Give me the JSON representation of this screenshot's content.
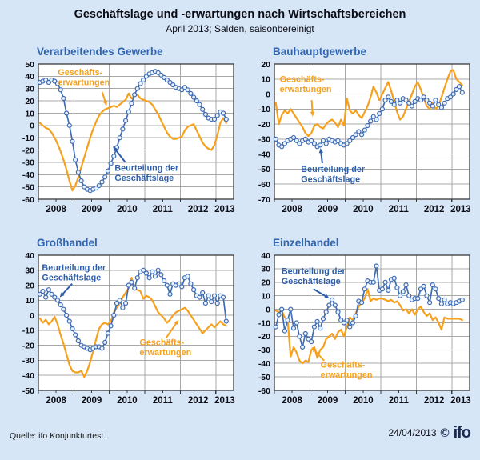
{
  "header": {
    "title": "Geschäftslage und -erwartungen nach Wirtschaftsbereichen",
    "subtitle": "April 2013; Salden, saisonbereinigt"
  },
  "footer": {
    "source": "Quelle: ifo Konjunkturtest.",
    "date": "24/04/2013",
    "copyright": "©",
    "logo": "ifo"
  },
  "colors": {
    "background": "#D7E6F6",
    "plot_bg": "#FFFFFF",
    "grid": "#A8A8A8",
    "frame": "#3A3A3A",
    "orange": "#F6A11D",
    "blue": "#3F6CB4",
    "marker_fill": "#EAF1FB",
    "chart_title": "#3265AF",
    "annotation_blue": "#2E5EA8",
    "logo_navy": "#1B2A52"
  },
  "chart_data": [
    {
      "type": "line",
      "title": "Verarbeitendes Gewerbe",
      "ylim": [
        -60,
        50
      ],
      "ytick_step": 10,
      "x_domain": [
        2008,
        2013.5
      ],
      "x_years": [
        2008,
        2009,
        2010,
        2011,
        2012,
        2013
      ],
      "x_unit": "month (Jan 2008 – Apr 2013)",
      "series": [
        {
          "name": "Geschäftserwartungen",
          "color_key": "orange",
          "values": [
            2,
            0,
            -2,
            -3,
            -6,
            -10,
            -15,
            -21,
            -28,
            -36,
            -45,
            -53,
            -49,
            -42,
            -34,
            -26,
            -18,
            -10,
            -3,
            3,
            8,
            11,
            13,
            14,
            15,
            16,
            15,
            17,
            19,
            21,
            26,
            22,
            24,
            25,
            22,
            21,
            20,
            19,
            17,
            13,
            9,
            4,
            -1,
            -6,
            -9,
            -11,
            -11,
            -10,
            -9,
            -4,
            -1,
            0,
            1,
            -4,
            -9,
            -14,
            -17,
            -19,
            -20,
            -16,
            -8,
            2,
            6,
            2
          ]
        },
        {
          "name": "Beurteilung der Geschäftslage",
          "color_key": "blue",
          "marker": "circle",
          "values": [
            35,
            36,
            37,
            35,
            37,
            36,
            34,
            29,
            22,
            10,
            0,
            -13,
            -28,
            -38,
            -45,
            -50,
            -52,
            -53,
            -52,
            -51,
            -49,
            -46,
            -42,
            -37,
            -31,
            -25,
            -18,
            -10,
            -3,
            4,
            11,
            18,
            25,
            30,
            34,
            37,
            40,
            42,
            43,
            44,
            43,
            41,
            39,
            37,
            35,
            33,
            31,
            30,
            29,
            31,
            29,
            26,
            23,
            20,
            17,
            13,
            9,
            6,
            5,
            5,
            8,
            11,
            10,
            5
          ]
        }
      ],
      "annotations": [
        {
          "lines": [
            "Geschäfts-",
            "erwartungen"
          ],
          "color_key": "orange",
          "x": 2008.55,
          "y": 41,
          "arrow": [
            2009.8,
            27,
            2009.92,
            16
          ]
        },
        {
          "lines": [
            "Beurteilung der",
            "Geschäftslage"
          ],
          "color_key": "blue",
          "x": 2010.15,
          "y": -37,
          "arrow": [
            2010.45,
            -30,
            2010.1,
            -17
          ]
        }
      ]
    },
    {
      "type": "line",
      "title": "Bauhauptgewerbe",
      "ylim": [
        -70,
        20
      ],
      "ytick_step": 10,
      "x_domain": [
        2008,
        2013.5
      ],
      "x_years": [
        2008,
        2009,
        2010,
        2011,
        2012,
        2013
      ],
      "x_unit": "month (Jan 2008 – Apr 2013)",
      "series": [
        {
          "name": "Geschäftserwartungen",
          "color_key": "orange",
          "values": [
            -6,
            -20,
            -14,
            -11,
            -13,
            -10,
            -13,
            -16,
            -19,
            -22,
            -26,
            -28,
            -26,
            -21,
            -20,
            -22,
            -23,
            -20,
            -18,
            -17,
            -19,
            -22,
            -17,
            -21,
            -3,
            -11,
            -13,
            -11,
            -14,
            -16,
            -12,
            -8,
            -2,
            5,
            1,
            -4,
            0,
            4,
            8,
            2,
            -5,
            -12,
            -17,
            -15,
            -10,
            -5,
            0,
            5,
            8,
            3,
            -3,
            -8,
            -10,
            -6,
            -10,
            -8,
            -2,
            4,
            10,
            15,
            16,
            10,
            8,
            6
          ]
        },
        {
          "name": "Beurteilung der Geschäftslage",
          "color_key": "blue",
          "marker": "circle",
          "values": [
            -30,
            -34,
            -35,
            -33,
            -31,
            -30,
            -29,
            -31,
            -33,
            -31,
            -30,
            -32,
            -31,
            -33,
            -35,
            -34,
            -31,
            -33,
            -30,
            -31,
            -32,
            -31,
            -33,
            -34,
            -33,
            -31,
            -29,
            -27,
            -25,
            -27,
            -24,
            -21,
            -18,
            -15,
            -17,
            -13,
            -10,
            -4,
            -2,
            -5,
            -7,
            -4,
            -6,
            -3,
            -4,
            -6,
            -8,
            -5,
            -3,
            -4,
            -2,
            -4,
            -6,
            -8,
            -4,
            -7,
            -9,
            -6,
            -3,
            -2,
            0,
            3,
            5,
            1
          ]
        }
      ],
      "annotations": [
        {
          "lines": [
            "Geschäfts-",
            "erwartungen"
          ],
          "color_key": "orange",
          "x": 2008.15,
          "y": 8,
          "arrow": [
            2009.05,
            -4,
            2009.08,
            -15
          ]
        },
        {
          "lines": [
            "Beurteilung der",
            "Geschäftslage"
          ],
          "color_key": "blue",
          "x": 2008.75,
          "y": -52,
          "arrow": [
            2009.35,
            -46,
            2009.3,
            -36
          ]
        }
      ]
    },
    {
      "type": "line",
      "title": "Großhandel",
      "ylim": [
        -50,
        40
      ],
      "ytick_step": 10,
      "x_domain": [
        2008,
        2013.5
      ],
      "x_years": [
        2008,
        2009,
        2010,
        2011,
        2012,
        2013
      ],
      "x_unit": "month (Jan 2008 – Apr 2013)",
      "series": [
        {
          "name": "Geschäftserwartungen",
          "color_key": "orange",
          "values": [
            -2,
            -5,
            -3,
            -6,
            -4,
            -1,
            -6,
            -13,
            -19,
            -26,
            -33,
            -37,
            -38,
            -38,
            -37,
            -41,
            -37,
            -31,
            -24,
            -16,
            -9,
            -6,
            -5,
            -6,
            -4,
            2,
            5,
            8,
            12,
            15,
            18,
            25,
            17,
            17,
            16,
            11,
            13,
            12,
            10,
            6,
            2,
            0,
            -2,
            -5,
            -3,
            0,
            2,
            3,
            4,
            5,
            3,
            0,
            -3,
            -6,
            -9,
            -12,
            -10,
            -8,
            -6,
            -8,
            -6,
            -4,
            -6,
            -7
          ]
        },
        {
          "name": "Beurteilung der Geschäftslage",
          "color_key": "blue",
          "marker": "circle",
          "values": [
            14,
            16,
            12,
            17,
            14,
            12,
            10,
            7,
            4,
            0,
            -4,
            -9,
            -13,
            -17,
            -20,
            -21,
            -22,
            -23,
            -22,
            -21,
            -21,
            -22,
            -18,
            -12,
            -7,
            0,
            8,
            10,
            5,
            8,
            20,
            22,
            18,
            25,
            29,
            30,
            28,
            25,
            29,
            26,
            30,
            27,
            23,
            20,
            14,
            21,
            20,
            21,
            19,
            25,
            26,
            21,
            17,
            13,
            12,
            15,
            8,
            13,
            9,
            13,
            8,
            13,
            12,
            -4
          ]
        }
      ],
      "annotations": [
        {
          "lines": [
            "Beurteilung der",
            "Geschäftslage"
          ],
          "color_key": "blue",
          "x": 2008.1,
          "y": 30,
          "arrow": [
            2008.95,
            21,
            2008.6,
            12
          ]
        },
        {
          "lines": [
            "Geschäfts-",
            "erwartungen"
          ],
          "color_key": "orange",
          "x": 2010.85,
          "y": -20,
          "arrow": [
            2011.6,
            -15,
            2011.95,
            -3
          ]
        }
      ]
    },
    {
      "type": "line",
      "title": "Einzelhandel",
      "ylim": [
        -60,
        40
      ],
      "ytick_step": 10,
      "x_domain": [
        2008,
        2013.5
      ],
      "x_years": [
        2008,
        2009,
        2010,
        2011,
        2012,
        2013
      ],
      "x_unit": "month (Jan 2008 – Apr 2013)",
      "series": [
        {
          "name": "Geschäftserwartungen",
          "color_key": "orange",
          "values": [
            -1,
            -2,
            -1,
            -6,
            -8,
            -35,
            -28,
            -32,
            -38,
            -40,
            -38,
            -39,
            -30,
            -28,
            -36,
            -30,
            -28,
            -22,
            -20,
            -18,
            -22,
            -17,
            -15,
            -20,
            -13,
            -6,
            -8,
            -3,
            2,
            5,
            8,
            15,
            6,
            8,
            7,
            8,
            8,
            7,
            6,
            7,
            5,
            6,
            3,
            -1,
            0,
            -3,
            0,
            -4,
            0,
            2,
            -2,
            -5,
            -3,
            -8,
            -6,
            -10,
            -15,
            -6,
            -7,
            -7,
            -7,
            -7,
            -7,
            -8
          ]
        },
        {
          "name": "Beurteilung der Geschäftslage",
          "color_key": "blue",
          "marker": "circle",
          "values": [
            -13,
            -4,
            0,
            -16,
            -8,
            0,
            -14,
            -10,
            -20,
            -28,
            -18,
            -22,
            -24,
            -13,
            -9,
            -14,
            -7,
            -2,
            3,
            7,
            3,
            -2,
            -8,
            -10,
            -8,
            -13,
            -10,
            -5,
            6,
            5,
            15,
            21,
            20,
            20,
            32,
            14,
            15,
            20,
            14,
            22,
            23,
            16,
            10,
            13,
            18,
            10,
            7,
            8,
            8,
            15,
            17,
            10,
            5,
            18,
            15,
            8,
            4,
            7,
            4,
            5,
            4,
            5,
            6,
            7
          ]
        }
      ],
      "annotations": [
        {
          "lines": [
            "Beurteilung der",
            "Geschäftslage"
          ],
          "color_key": "blue",
          "x": 2008.2,
          "y": 26,
          "arrow": [
            2009.1,
            15,
            2009.55,
            8
          ]
        },
        {
          "lines": [
            "Geschäfts-",
            "erwartungen"
          ],
          "color_key": "orange",
          "x": 2009.3,
          "y": -43,
          "arrow": [
            2009.4,
            -38,
            2009.05,
            -28
          ]
        }
      ]
    }
  ]
}
